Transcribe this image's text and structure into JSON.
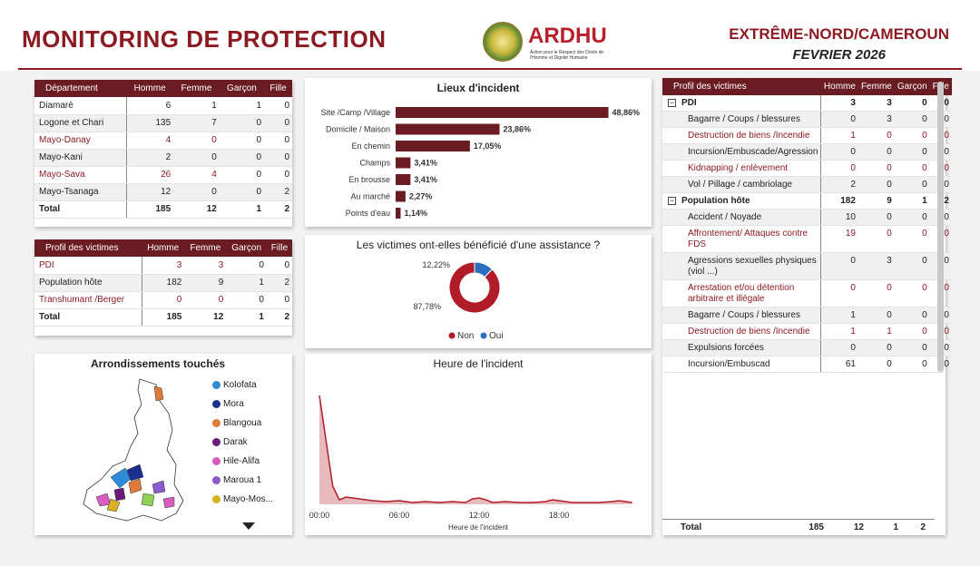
{
  "header": {
    "title": "MONITORING DE PROTECTION",
    "logo_name": "ARDHU",
    "logo_sub": "Action pour le Respect des Droits de l'Homme et Dignité Humaine",
    "region": "EXTRÊME-NORD/CAMEROUN",
    "month": "FEVRIER 2026"
  },
  "dept_table": {
    "headers": [
      "Département",
      "Homme",
      "Femme",
      "Garçon",
      "Fille"
    ],
    "rows": [
      {
        "name": "Diamaré",
        "h": "6",
        "f": "1",
        "g": "1",
        "fi": "0"
      },
      {
        "name": "Logone et Chari",
        "h": "135",
        "f": "7",
        "g": "0",
        "fi": "0"
      },
      {
        "name": "Mayo-Danay",
        "h": "4",
        "f": "0",
        "g": "0",
        "fi": "0"
      },
      {
        "name": "Mayo-Kani",
        "h": "2",
        "f": "0",
        "g": "0",
        "fi": "0"
      },
      {
        "name": "Mayo-Sava",
        "h": "26",
        "f": "4",
        "g": "0",
        "fi": "0"
      },
      {
        "name": "Mayo-Tsanaga",
        "h": "12",
        "f": "0",
        "g": "0",
        "fi": "2"
      }
    ],
    "total": {
      "name": "Total",
      "h": "185",
      "f": "12",
      "g": "1",
      "fi": "2"
    }
  },
  "profile_table": {
    "headers": [
      "Profil des victimes",
      "Homme",
      "Femme",
      "Garçon",
      "Fille"
    ],
    "rows": [
      {
        "name": "PDI",
        "h": "3",
        "f": "3",
        "g": "0",
        "fi": "0"
      },
      {
        "name": "Population hôte",
        "h": "182",
        "f": "9",
        "g": "1",
        "fi": "2"
      },
      {
        "name": "Transhumant /Berger",
        "h": "0",
        "f": "0",
        "g": "0",
        "fi": "0"
      }
    ],
    "total": {
      "name": "Total",
      "h": "185",
      "f": "12",
      "g": "1",
      "fi": "2"
    }
  },
  "map": {
    "title": "Arrondissements touchés",
    "legend": [
      {
        "name": "Kolofata",
        "color": "#2e8bd8"
      },
      {
        "name": "Mora",
        "color": "#1b2f8f"
      },
      {
        "name": "Blangoua",
        "color": "#e07a3a"
      },
      {
        "name": "Darak",
        "color": "#6b1a7a"
      },
      {
        "name": "Hile-Alifa",
        "color": "#d85cc0"
      },
      {
        "name": "Maroua 1",
        "color": "#8a5ad0"
      },
      {
        "name": "Mayo-Mos...",
        "color": "#d8b020"
      }
    ]
  },
  "lieux": {
    "title": "Lieux d'incident",
    "bar_color": "#6b1c22"
  },
  "assistance": {
    "title": "Les victimes ont-elles bénéficié d'une assistance ?",
    "legend_non": "Non",
    "legend_oui": "Oui",
    "color_non": "#b01c28",
    "color_oui": "#2a6fc0"
  },
  "heure": {
    "title": "Heure de l'incident",
    "xlabel": "Heure de l'incident",
    "line_color": "#b01c28"
  },
  "chart_data": [
    {
      "type": "bar",
      "title": "Lieux d'incident",
      "categories": [
        "Site /Camp /Village",
        "Domicile / Maison",
        "En chemin",
        "Champs",
        "En brousse",
        "Au marché",
        "Points d'eau"
      ],
      "values": [
        48.86,
        23.86,
        17.05,
        3.41,
        3.41,
        2.27,
        1.14
      ],
      "labels": [
        "48,86%",
        "23,86%",
        "17,05%",
        "3,41%",
        "3,41%",
        "2,27%",
        "1,14%"
      ]
    },
    {
      "type": "pie",
      "title": "Les victimes ont-elles bénéficié d'une assistance ?",
      "categories": [
        "Non",
        "Oui"
      ],
      "values": [
        87.78,
        12.22
      ],
      "labels": [
        "87,78%",
        "12,22%"
      ]
    },
    {
      "type": "area",
      "title": "Heure de l'incident",
      "xlabel": "Heure de l'incident",
      "ticks": [
        "00:00",
        "06:00",
        "12:00",
        "18:00"
      ],
      "x": [
        0,
        0.5,
        1,
        1.5,
        2,
        3,
        4,
        5,
        6,
        7,
        8,
        9,
        10,
        11,
        11.5,
        12,
        12.5,
        13,
        14,
        15,
        16,
        17,
        17.5,
        18,
        18.5,
        19,
        20,
        21,
        22,
        22.5,
        23,
        23.5
      ],
      "y": [
        120,
        70,
        20,
        5,
        8,
        6,
        4,
        3,
        4,
        2,
        3,
        2,
        3,
        2,
        6,
        7,
        5,
        2,
        3,
        2,
        2,
        3,
        5,
        4,
        3,
        2,
        2,
        2,
        3,
        4,
        3,
        2
      ]
    }
  ],
  "victim_profile": {
    "headers": [
      "Profil des victimes",
      "Homme",
      "Femme",
      "Garçon",
      "Fille"
    ],
    "groups": [
      {
        "name": "PDI",
        "h": "3",
        "f": "3",
        "g": "0",
        "fi": "0",
        "items": [
          {
            "name": "Bagarre / Coups / blessures",
            "h": "0",
            "f": "3",
            "g": "0",
            "fi": "0"
          },
          {
            "name": "Destruction de biens /Incendie",
            "h": "1",
            "f": "0",
            "g": "0",
            "fi": "0"
          },
          {
            "name": "Incursion/Embuscade/Agression",
            "h": "0",
            "f": "0",
            "g": "0",
            "fi": "0"
          },
          {
            "name": "Kidnapping / enlèvement",
            "h": "0",
            "f": "0",
            "g": "0",
            "fi": "0"
          },
          {
            "name": "Vol / Pillage / cambriolage",
            "h": "2",
            "f": "0",
            "g": "0",
            "fi": "0"
          }
        ]
      },
      {
        "name": "Population hôte",
        "h": "182",
        "f": "9",
        "g": "1",
        "fi": "2",
        "items": [
          {
            "name": "Accident / Noyade",
            "h": "10",
            "f": "0",
            "g": "0",
            "fi": "0"
          },
          {
            "name": "Affrontement/ Attaques contre FDS",
            "h": "19",
            "f": "0",
            "g": "0",
            "fi": "0"
          },
          {
            "name": "Agressions sexuelles physiques (viol ...)",
            "h": "0",
            "f": "3",
            "g": "0",
            "fi": "0"
          },
          {
            "name": "Arrestation et/ou détention arbitraire et illégale",
            "h": "0",
            "f": "0",
            "g": "0",
            "fi": "0"
          },
          {
            "name": "Bagarre / Coups / blessures",
            "h": "1",
            "f": "0",
            "g": "0",
            "fi": "0"
          },
          {
            "name": "Destruction de biens /Incendie",
            "h": "1",
            "f": "1",
            "g": "0",
            "fi": "0"
          },
          {
            "name": "Expulsions forcées",
            "h": "0",
            "f": "0",
            "g": "0",
            "fi": "0"
          },
          {
            "name": "Incursion/Embuscad",
            "h": "61",
            "f": "0",
            "g": "0",
            "fi": "0"
          }
        ]
      }
    ],
    "total": {
      "name": "Total",
      "h": "185",
      "f": "12",
      "g": "1",
      "fi": "2"
    }
  }
}
